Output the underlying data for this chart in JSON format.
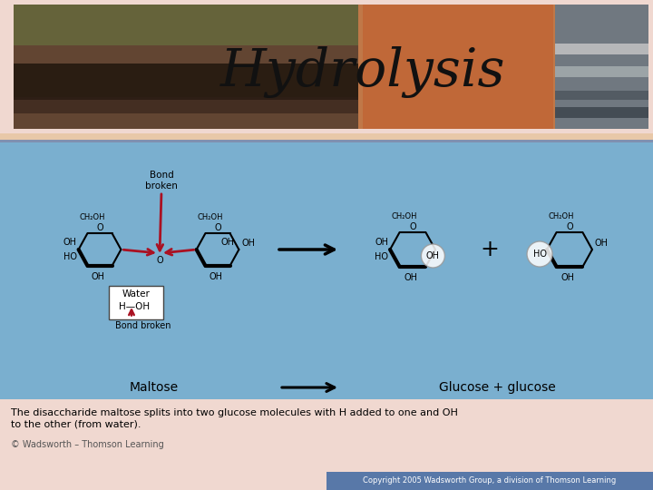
{
  "title": "Hydrolysis",
  "bg_pink": "#f0d8d0",
  "bg_blue": "#7aafcf",
  "bg_tan_strip": "#e8c8a8",
  "copyright_bg": "#5878a8",
  "copyright_text": "Copyright 2005 Wadsworth Group, a division of Thomson Learning",
  "footer_text": "© Wadsworth – Thomson Learning",
  "desc_line1": "The disaccharide maltose splits into two glucose molecules with H added to one and OH",
  "desc_line2": "to the other (from water).",
  "label_maltose": "Maltose",
  "label_product": "Glucose + glucose",
  "red_color": "#aa1122",
  "header_bg": "#c07848",
  "header_photo_left_dark": "#2a2018",
  "header_photo_green": "#5a7030",
  "header_photo_right_orange": "#b86030",
  "header_photo_gray": "#888898"
}
